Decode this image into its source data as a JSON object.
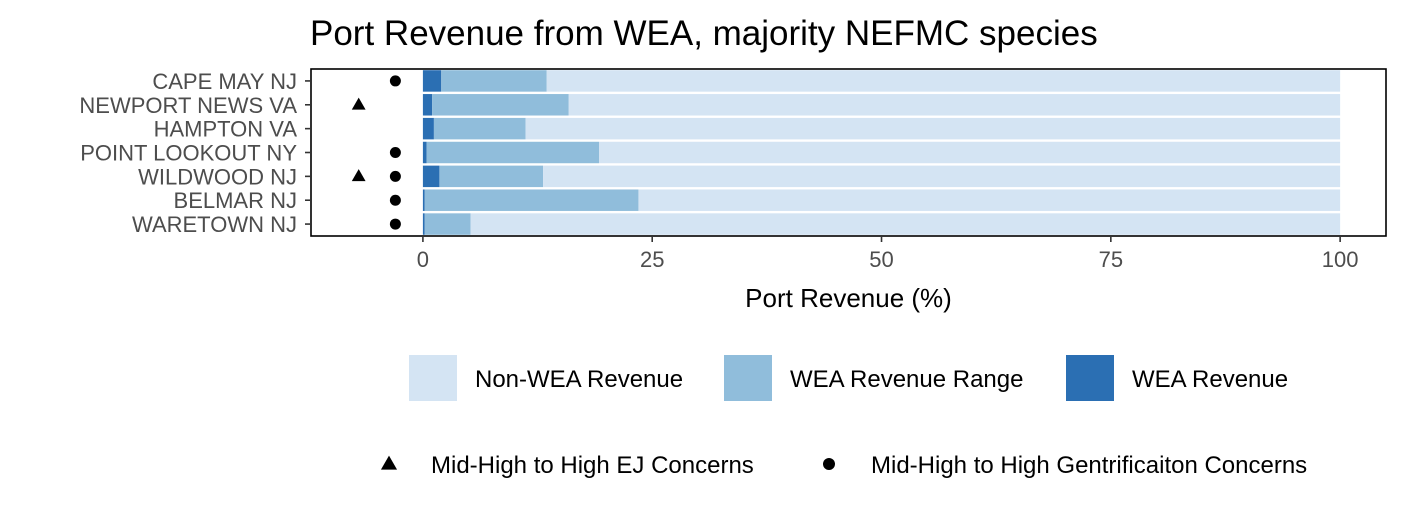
{
  "chart_data": {
    "type": "bar",
    "orientation": "horizontal",
    "stacked": true,
    "title": "Port Revenue from WEA, majority NEFMC species",
    "xlabel": "Port Revenue (%)",
    "ylabel": "",
    "xlim": [
      -12.2,
      105
    ],
    "xticks": [
      0,
      25,
      50,
      75,
      100
    ],
    "xtick_labels": [
      "0",
      "25",
      "50",
      "75",
      "100"
    ],
    "grid": false,
    "categories": [
      "CAPE MAY NJ",
      "NEWPORT NEWS VA",
      "HAMPTON VA",
      "POINT LOOKOUT NY",
      "WILDWOOD NJ",
      "BELMAR NJ",
      "WARETOWN NJ"
    ],
    "series": [
      {
        "name": "WEA Revenue",
        "color": "#2b6fb3",
        "values": [
          2.0,
          1.0,
          1.2,
          0.4,
          1.8,
          0.2,
          0.2
        ]
      },
      {
        "name": "WEA Revenue Range",
        "color": "#90bddb",
        "values": [
          11.5,
          14.9,
          10.0,
          18.8,
          11.3,
          23.3,
          5.0
        ]
      },
      {
        "name": "Non-WEA Revenue",
        "color": "#d4e4f3",
        "values": [
          86.5,
          84.1,
          88.8,
          80.8,
          86.9,
          76.5,
          94.8
        ]
      }
    ],
    "legend_order": [
      "Non-WEA Revenue",
      "WEA Revenue Range",
      "WEA Revenue"
    ],
    "legend_position": "bottom",
    "markers": {
      "ej": {
        "label": "Mid-High to High EJ Concerns",
        "shape": "triangle",
        "x": -7,
        "categories": [
          "NEWPORT NEWS VA",
          "WILDWOOD NJ"
        ]
      },
      "gentrification": {
        "label": "Mid-High to High Gentrificaiton Concerns",
        "shape": "circle",
        "x": -3,
        "categories": [
          "CAPE MAY NJ",
          "POINT LOOKOUT NY",
          "WILDWOOD NJ",
          "BELMAR NJ",
          "WARETOWN NJ"
        ]
      }
    }
  }
}
